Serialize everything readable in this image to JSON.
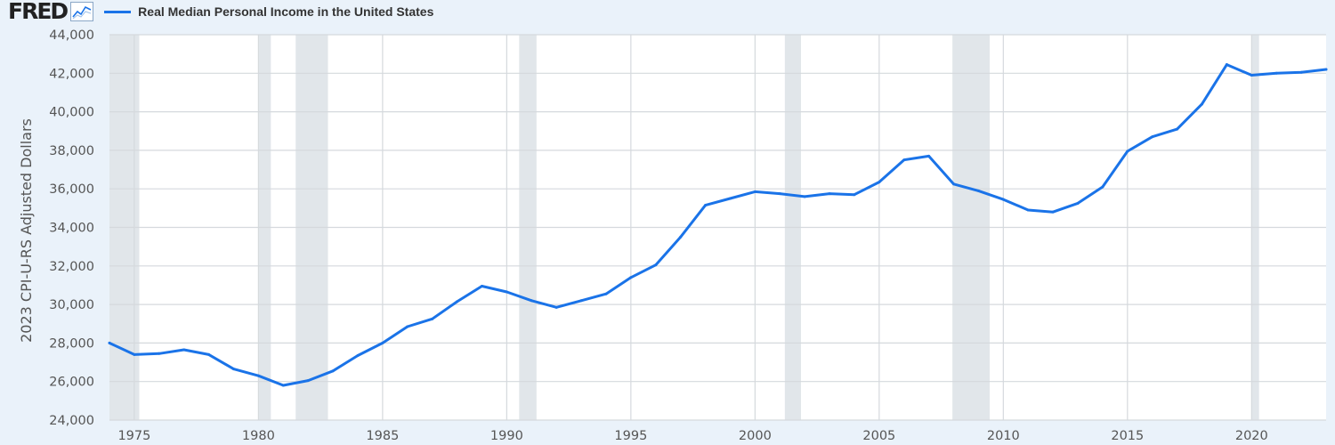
{
  "header": {
    "logo_text": "FRED",
    "logo_icon": "line-chart-icon",
    "legend_label": "Real Median Personal Income in the United States"
  },
  "colors": {
    "background": "#eaf2fa",
    "plot_background": "#ffffff",
    "line": "#1a73e8",
    "recession": "#e1e6ea",
    "grid": "#d5d9dd"
  },
  "chart_data": {
    "type": "line",
    "title": "",
    "xlabel": "",
    "ylabel": "2023 CPI-U-RS Adjusted Dollars",
    "xlim": [
      1974,
      2023
    ],
    "ylim": [
      24000,
      44000
    ],
    "grid": true,
    "x_ticks": [
      1975,
      1980,
      1985,
      1990,
      1995,
      2000,
      2005,
      2010,
      2015,
      2020
    ],
    "x_tick_labels": [
      "1975",
      "1980",
      "1985",
      "1990",
      "1995",
      "2000",
      "2005",
      "2010",
      "2015",
      "2020"
    ],
    "y_ticks": [
      24000,
      26000,
      28000,
      30000,
      32000,
      34000,
      36000,
      38000,
      40000,
      42000,
      44000
    ],
    "y_tick_labels": [
      "24,000",
      "26,000",
      "28,000",
      "30,000",
      "32,000",
      "34,000",
      "36,000",
      "38,000",
      "40,000",
      "42,000",
      "44,000"
    ],
    "recessions": [
      [
        1973.9,
        1975.2
      ],
      [
        1980.0,
        1980.5
      ],
      [
        1981.5,
        1982.8
      ],
      [
        1990.5,
        1991.2
      ],
      [
        2001.2,
        2001.85
      ],
      [
        2007.95,
        2009.45
      ],
      [
        2020.0,
        2020.3
      ]
    ],
    "series": [
      {
        "name": "Real Median Personal Income in the United States",
        "x": [
          1974,
          1975,
          1976,
          1977,
          1978,
          1979,
          1980,
          1981,
          1982,
          1983,
          1984,
          1985,
          1986,
          1987,
          1988,
          1989,
          1990,
          1991,
          1992,
          1993,
          1994,
          1995,
          1996,
          1997,
          1998,
          1999,
          2000,
          2001,
          2002,
          2003,
          2004,
          2005,
          2006,
          2007,
          2008,
          2009,
          2010,
          2011,
          2012,
          2013,
          2014,
          2015,
          2016,
          2017,
          2018,
          2019,
          2020,
          2021,
          2022,
          2023
        ],
        "values": [
          28000,
          27400,
          27450,
          27650,
          27400,
          26650,
          26300,
          25800,
          26050,
          26550,
          27350,
          28000,
          28850,
          29250,
          30150,
          30950,
          30650,
          30200,
          29850,
          30200,
          30550,
          31400,
          32050,
          33500,
          35150,
          35500,
          35850,
          35750,
          35600,
          35750,
          35700,
          36350,
          37500,
          37700,
          36250,
          35900,
          35450,
          34900,
          34800,
          35250,
          36100,
          37950,
          38700,
          39100,
          40400,
          42450,
          41900,
          42000,
          42050,
          42200
        ]
      }
    ]
  }
}
